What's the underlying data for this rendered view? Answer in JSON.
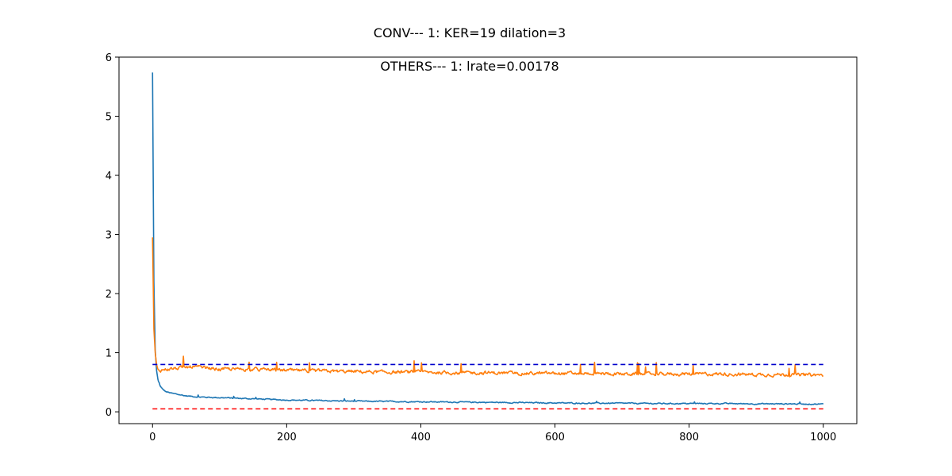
{
  "chart_data": {
    "type": "line",
    "title": "CONV--- 1: KER=19   dilation=3",
    "subtitle": "OTHERS--- 1: lrate=0.00178",
    "xlabel": "",
    "ylabel": "",
    "xlim": [
      -50,
      1050
    ],
    "ylim": [
      -0.2,
      6.0
    ],
    "x_ticks": [
      0,
      200,
      400,
      600,
      800,
      1000
    ],
    "y_ticks": [
      0,
      1,
      2,
      3,
      4,
      5,
      6
    ],
    "grid": false,
    "legend": "none",
    "x_range": [
      0,
      1000
    ],
    "series": [
      {
        "color": "#1f77b4",
        "style": "solid",
        "x": [
          0,
          2,
          4,
          6,
          8,
          10,
          15,
          20,
          30,
          40,
          50,
          70,
          100,
          150,
          200,
          250,
          300,
          350,
          400,
          450,
          500,
          550,
          600,
          650,
          700,
          750,
          800,
          850,
          900,
          950,
          1000
        ],
        "values": [
          5.74,
          2.2,
          1.05,
          0.7,
          0.55,
          0.46,
          0.38,
          0.34,
          0.31,
          0.29,
          0.27,
          0.25,
          0.24,
          0.22,
          0.2,
          0.19,
          0.18,
          0.175,
          0.17,
          0.165,
          0.16,
          0.155,
          0.15,
          0.145,
          0.145,
          0.14,
          0.14,
          0.14,
          0.135,
          0.135,
          0.13
        ]
      },
      {
        "color": "#ff7f0e",
        "style": "solid",
        "x": [
          0,
          2,
          4,
          6,
          8,
          10,
          20,
          40,
          60,
          80,
          100,
          150,
          200,
          250,
          300,
          350,
          400,
          450,
          500,
          550,
          600,
          650,
          700,
          750,
          800,
          850,
          900,
          950,
          1000
        ],
        "values": [
          2.95,
          1.4,
          1.0,
          0.8,
          0.72,
          0.7,
          0.72,
          0.74,
          0.76,
          0.74,
          0.72,
          0.72,
          0.7,
          0.69,
          0.68,
          0.67,
          0.67,
          0.66,
          0.66,
          0.65,
          0.65,
          0.65,
          0.64,
          0.64,
          0.64,
          0.64,
          0.63,
          0.63,
          0.62
        ]
      },
      {
        "color": "#0000cc",
        "style": "dashed",
        "x": [
          0,
          1000
        ],
        "values": [
          0.8,
          0.8
        ]
      },
      {
        "color": "#ff0000",
        "style": "dashed",
        "x": [
          0,
          1000
        ],
        "values": [
          0.05,
          0.05
        ]
      }
    ]
  }
}
